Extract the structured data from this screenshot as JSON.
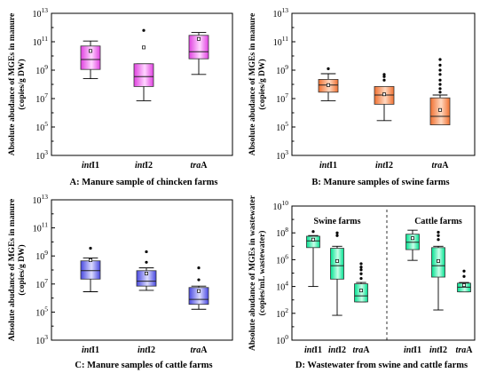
{
  "chart_data": [
    {
      "type": "box",
      "caption": "A: Manure sample of chincken farms",
      "ylabel": "Absolute abudance of MGEs in manure",
      "ylabel2": "(copies/g DW)",
      "yscale": "log10",
      "ylim_exp": [
        3,
        13
      ],
      "yticks_exp": [
        3,
        5,
        7,
        9,
        11,
        13
      ],
      "colors": [
        "#e040e0",
        "#ffd6ff"
      ],
      "categories": [
        {
          "prefix": "int",
          "suffix": "I1"
        },
        {
          "prefix": "int",
          "suffix": "I2"
        },
        {
          "prefix": "tra",
          "suffix": "A"
        }
      ],
      "boxes": [
        {
          "whisker_low": 8.4,
          "q1": 9.05,
          "median": 9.75,
          "q3": 10.7,
          "whisker_high": 11.05,
          "mean": 10.35,
          "outliers": []
        },
        {
          "whisker_low": 6.85,
          "q1": 7.85,
          "median": 8.55,
          "q3": 9.45,
          "whisker_high": 9.45,
          "mean": 10.6,
          "outliers": [
            11.8
          ]
        },
        {
          "whisker_low": 8.7,
          "q1": 9.8,
          "median": 10.3,
          "q3": 11.45,
          "whisker_high": 11.65,
          "mean": 11.2,
          "outliers": []
        }
      ]
    },
    {
      "type": "box",
      "caption": "B: Manure samples of swine farms",
      "ylabel": "Absolute abudance of MGEs in manure",
      "ylabel2": "(copies/g DW)",
      "yscale": "log10",
      "ylim_exp": [
        3,
        13
      ],
      "yticks_exp": [
        3,
        5,
        7,
        9,
        11,
        13
      ],
      "colors": [
        "#f07030",
        "#ffd8c0"
      ],
      "categories": [
        {
          "prefix": "int",
          "suffix": "I1"
        },
        {
          "prefix": "int",
          "suffix": "I2"
        },
        {
          "prefix": "tra",
          "suffix": "A"
        }
      ],
      "boxes": [
        {
          "whisker_low": 6.85,
          "q1": 7.45,
          "median": 7.95,
          "q3": 8.35,
          "whisker_high": 8.75,
          "mean": 7.95,
          "outliers": [
            9.1
          ]
        },
        {
          "whisker_low": 5.45,
          "q1": 6.6,
          "median": 7.25,
          "q3": 7.85,
          "whisker_high": 7.85,
          "mean": 7.3,
          "outliers": [
            8.3,
            8.55,
            8.7
          ]
        },
        {
          "whisker_low": 5.15,
          "q1": 5.15,
          "median": 5.75,
          "q3": 7.05,
          "whisker_high": 7.25,
          "mean": 6.2,
          "outliers": [
            7.45,
            7.7,
            8.0,
            8.3,
            8.7,
            9.0,
            9.35,
            9.75
          ]
        }
      ]
    },
    {
      "type": "box",
      "caption": "C: Manure samples of cattle farms",
      "ylabel": "Absolute abudance of MGEs in manure",
      "ylabel2": "(copies/g DW)",
      "yscale": "log10",
      "ylim_exp": [
        3,
        13
      ],
      "yticks_exp": [
        3,
        5,
        7,
        9,
        11,
        13
      ],
      "colors": [
        "#4848e0",
        "#dcdcff"
      ],
      "categories": [
        {
          "prefix": "int",
          "suffix": "I1"
        },
        {
          "prefix": "int",
          "suffix": "I2"
        },
        {
          "prefix": "tra",
          "suffix": "A"
        }
      ],
      "boxes": [
        {
          "whisker_low": 6.45,
          "q1": 7.35,
          "median": 7.95,
          "q3": 8.65,
          "whisker_high": 8.85,
          "mean": 8.7,
          "outliers": [
            9.55
          ]
        },
        {
          "whisker_low": 6.55,
          "q1": 6.85,
          "median": 7.2,
          "q3": 7.95,
          "whisker_high": 8.15,
          "mean": 7.75,
          "outliers": [
            8.55,
            9.3
          ]
        },
        {
          "whisker_low": 5.2,
          "q1": 5.55,
          "median": 5.9,
          "q3": 6.75,
          "whisker_high": 6.85,
          "mean": 6.5,
          "outliers": [
            7.3,
            8.15
          ]
        }
      ]
    },
    {
      "type": "box",
      "caption": "D: Wastewater from swine and cattle farms",
      "ylabel": "Absolute abudance of MGEs in wastewater",
      "ylabel2": "(copies/mL wastewater)",
      "yscale": "log10",
      "ylim_exp": [
        0,
        10
      ],
      "yticks_exp": [
        0,
        2,
        4,
        6,
        8,
        10
      ],
      "colors": [
        "#00e090",
        "#c8ffe8"
      ],
      "groups": [
        "Swine farms",
        "Cattle farms"
      ],
      "categories": [
        {
          "prefix": "int",
          "suffix": "I1"
        },
        {
          "prefix": "int",
          "suffix": "I2"
        },
        {
          "prefix": "tra",
          "suffix": "A"
        },
        {
          "prefix": "int",
          "suffix": "I1"
        },
        {
          "prefix": "int",
          "suffix": "I2"
        },
        {
          "prefix": "tra",
          "suffix": "A"
        }
      ],
      "boxes": [
        {
          "whisker_low": 4.0,
          "q1": 6.9,
          "median": 7.4,
          "q3": 7.75,
          "whisker_high": 7.8,
          "mean": 7.5,
          "outliers": [
            8.1
          ]
        },
        {
          "whisker_low": 1.85,
          "q1": 4.55,
          "median": 5.55,
          "q3": 6.85,
          "whisker_high": 7.0,
          "mean": 5.9,
          "outliers": [
            7.8,
            8.0
          ]
        },
        {
          "whisker_low": 2.85,
          "q1": 2.85,
          "median": 3.3,
          "q3": 4.2,
          "whisker_high": 4.3,
          "mean": 3.7,
          "outliers": [
            4.6,
            4.95,
            5.25,
            5.45,
            5.7
          ]
        },
        {
          "whisker_low": 5.95,
          "q1": 6.75,
          "median": 7.3,
          "q3": 7.9,
          "whisker_high": 8.2,
          "mean": 7.6,
          "outliers": []
        },
        {
          "whisker_low": 2.25,
          "q1": 4.7,
          "median": 5.55,
          "q3": 6.9,
          "whisker_high": 7.0,
          "mean": 5.9,
          "outliers": [
            7.5,
            7.8,
            8.05
          ]
        },
        {
          "whisker_low": 3.6,
          "q1": 3.6,
          "median": 3.95,
          "q3": 4.25,
          "whisker_high": 4.3,
          "mean": 4.1,
          "outliers": [
            4.75,
            5.15
          ]
        }
      ]
    }
  ]
}
